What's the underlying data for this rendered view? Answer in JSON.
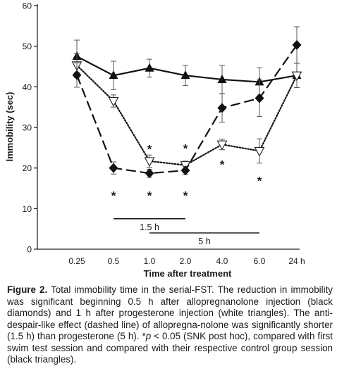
{
  "chart_data": {
    "type": "line",
    "categories": [
      "0.25",
      "0.5",
      "1.0",
      "2.0",
      "4.0",
      "6.0",
      "24 h"
    ],
    "ylabel": "Immobility (sec)",
    "xlabel": "Time after treatment",
    "ylim": [
      0,
      60
    ],
    "yticks": [
      0,
      10,
      20,
      30,
      40,
      50,
      60
    ],
    "grid": false,
    "legend": "none",
    "series": [
      {
        "marker": "filled-triangle",
        "line": "solid",
        "values": [
          47.5,
          42.8,
          44.6,
          42.8,
          41.8,
          41.2,
          42.8
        ],
        "errors": [
          4.0,
          3.5,
          2.2,
          2.5,
          3.5,
          3.5,
          3.0
        ]
      },
      {
        "marker": "open-triangle",
        "line": "dotted",
        "values": [
          45.3,
          36.5,
          21.7,
          20.7,
          25.8,
          24.2,
          42.8
        ],
        "errors": [
          3.0,
          1.5,
          1.5,
          1.0,
          1.3,
          3.0,
          3.0
        ]
      },
      {
        "marker": "filled-diamond",
        "line": "dashed",
        "values": [
          42.9,
          20.0,
          18.7,
          19.4,
          34.8,
          37.2,
          50.3
        ],
        "errors": [
          3.0,
          1.5,
          1.0,
          1.0,
          3.5,
          4.5,
          4.5
        ]
      }
    ],
    "annotations": {
      "stars": [
        {
          "category": "0.5",
          "y": 13.8
        },
        {
          "category": "1.0",
          "y": 13.8
        },
        {
          "category": "2.0",
          "y": 13.8
        },
        {
          "category": "1.0",
          "y": 25.2
        },
        {
          "category": "2.0",
          "y": 25.4
        },
        {
          "category": "4.0",
          "y": 21.4
        },
        {
          "category": "6.0",
          "y": 17.4
        }
      ],
      "star_symbol": "*",
      "bars": [
        {
          "label": "1.5 h",
          "from": "0.5",
          "to": "2.0",
          "y": 7.5
        },
        {
          "label": "5 h",
          "from": "1.0",
          "to": "6.0",
          "y": 4.0
        }
      ]
    }
  },
  "caption": {
    "lead": "Figure 2.",
    "text_1": " Total immobility time in the serial-FST. The reduction in immobility was significant beginning 0.5 h after allopregnanolone injection (black diamonds) and 1 h after progesterone injection (white triangles). The anti-despair-like effect (dashed line) of allopregna-nolone was significantly shorter (1.5 h) than progesterone (5 h). *",
    "p_symbol": "p",
    "text_2": " < 0.05 (SNK post hoc), compared with first swim test session and compared with their respective control group session (black triangles)."
  }
}
